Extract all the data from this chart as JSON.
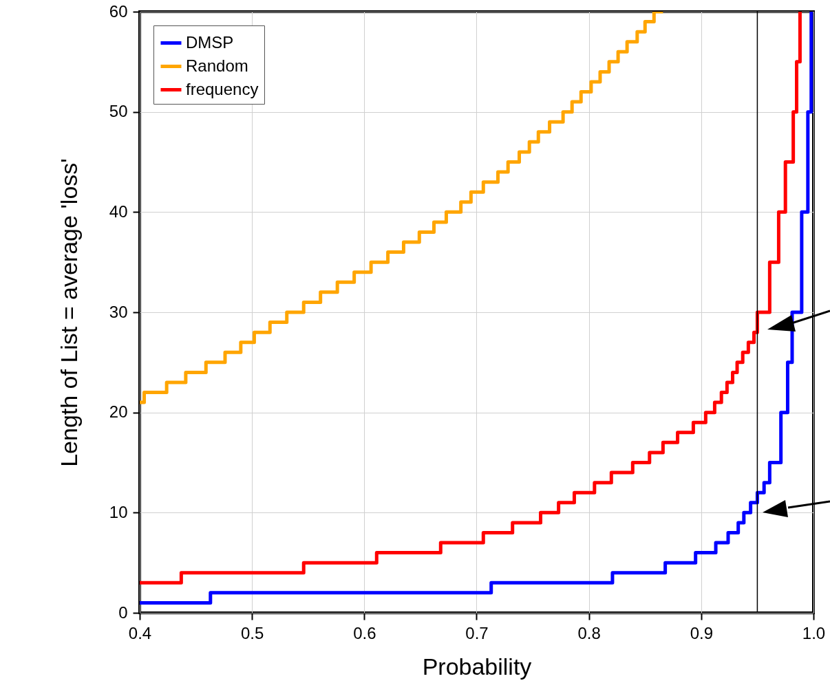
{
  "chart_data": {
    "type": "step",
    "xlabel": "Probability",
    "ylabel": "Length of List = average 'loss'",
    "xlim": [
      0.4,
      1.0
    ],
    "xticks": [
      0.4,
      0.5,
      0.6,
      0.7,
      0.8,
      0.9,
      {
        "value": 1.0,
        "label": "1.0"
      }
    ],
    "ylim": [
      0,
      60
    ],
    "yticks": [
      0,
      10,
      20,
      30,
      40,
      50,
      60
    ],
    "grid": true,
    "legend": "top left",
    "series": [
      {
        "name": "DMSP",
        "color": "#0000ff",
        "x": [
          0.4,
          0.463,
          0.713,
          0.821,
          0.868,
          0.895,
          0.913,
          0.924,
          0.933,
          0.938,
          0.944,
          0.95,
          0.956,
          0.961,
          0.971,
          0.977,
          0.981,
          0.9895,
          0.995,
          0.998
        ],
        "values": [
          1,
          2,
          3,
          4,
          5,
          6,
          7,
          8,
          9,
          10,
          11,
          12,
          13,
          15,
          20,
          25,
          30,
          40,
          50,
          60
        ]
      },
      {
        "name": "Random",
        "color": "#ffa500",
        "x": [
          0.4,
          0.404,
          0.424,
          0.441,
          0.459,
          0.476,
          0.49,
          0.502,
          0.516,
          0.531,
          0.546,
          0.561,
          0.576,
          0.591,
          0.606,
          0.621,
          0.635,
          0.649,
          0.662,
          0.673,
          0.686,
          0.695,
          0.706,
          0.719,
          0.728,
          0.738,
          0.747,
          0.755,
          0.765,
          0.777,
          0.785,
          0.793,
          0.802,
          0.81,
          0.818,
          0.826,
          0.834,
          0.843,
          0.85,
          0.858,
          0.866
        ],
        "values": [
          21,
          22,
          23,
          24,
          25,
          26,
          27,
          28,
          29,
          30,
          31,
          32,
          33,
          34,
          35,
          36,
          37,
          38,
          39,
          40,
          41,
          42,
          43,
          44,
          45,
          46,
          47,
          48,
          49,
          50,
          51,
          52,
          53,
          54,
          55,
          56,
          57,
          58,
          59,
          60,
          60
        ]
      },
      {
        "name": "frequency",
        "color": "#ff0000",
        "x": [
          0.4,
          0.437,
          0.546,
          0.611,
          0.668,
          0.706,
          0.732,
          0.757,
          0.773,
          0.787,
          0.805,
          0.82,
          0.839,
          0.854,
          0.866,
          0.879,
          0.893,
          0.904,
          0.912,
          0.918,
          0.923,
          0.928,
          0.932,
          0.937,
          0.942,
          0.947,
          0.95,
          0.961,
          0.969,
          0.975,
          0.982,
          0.985,
          0.988
        ],
        "values": [
          3,
          4,
          5,
          6,
          7,
          8,
          9,
          10,
          11,
          12,
          13,
          14,
          15,
          16,
          17,
          18,
          19,
          20,
          21,
          22,
          23,
          24,
          25,
          26,
          27,
          28,
          30,
          35,
          40,
          45,
          50,
          55,
          60
        ]
      }
    ],
    "ref_lines": [
      {
        "axis": "x",
        "value": 0.95,
        "color": "#000000"
      }
    ]
  }
}
